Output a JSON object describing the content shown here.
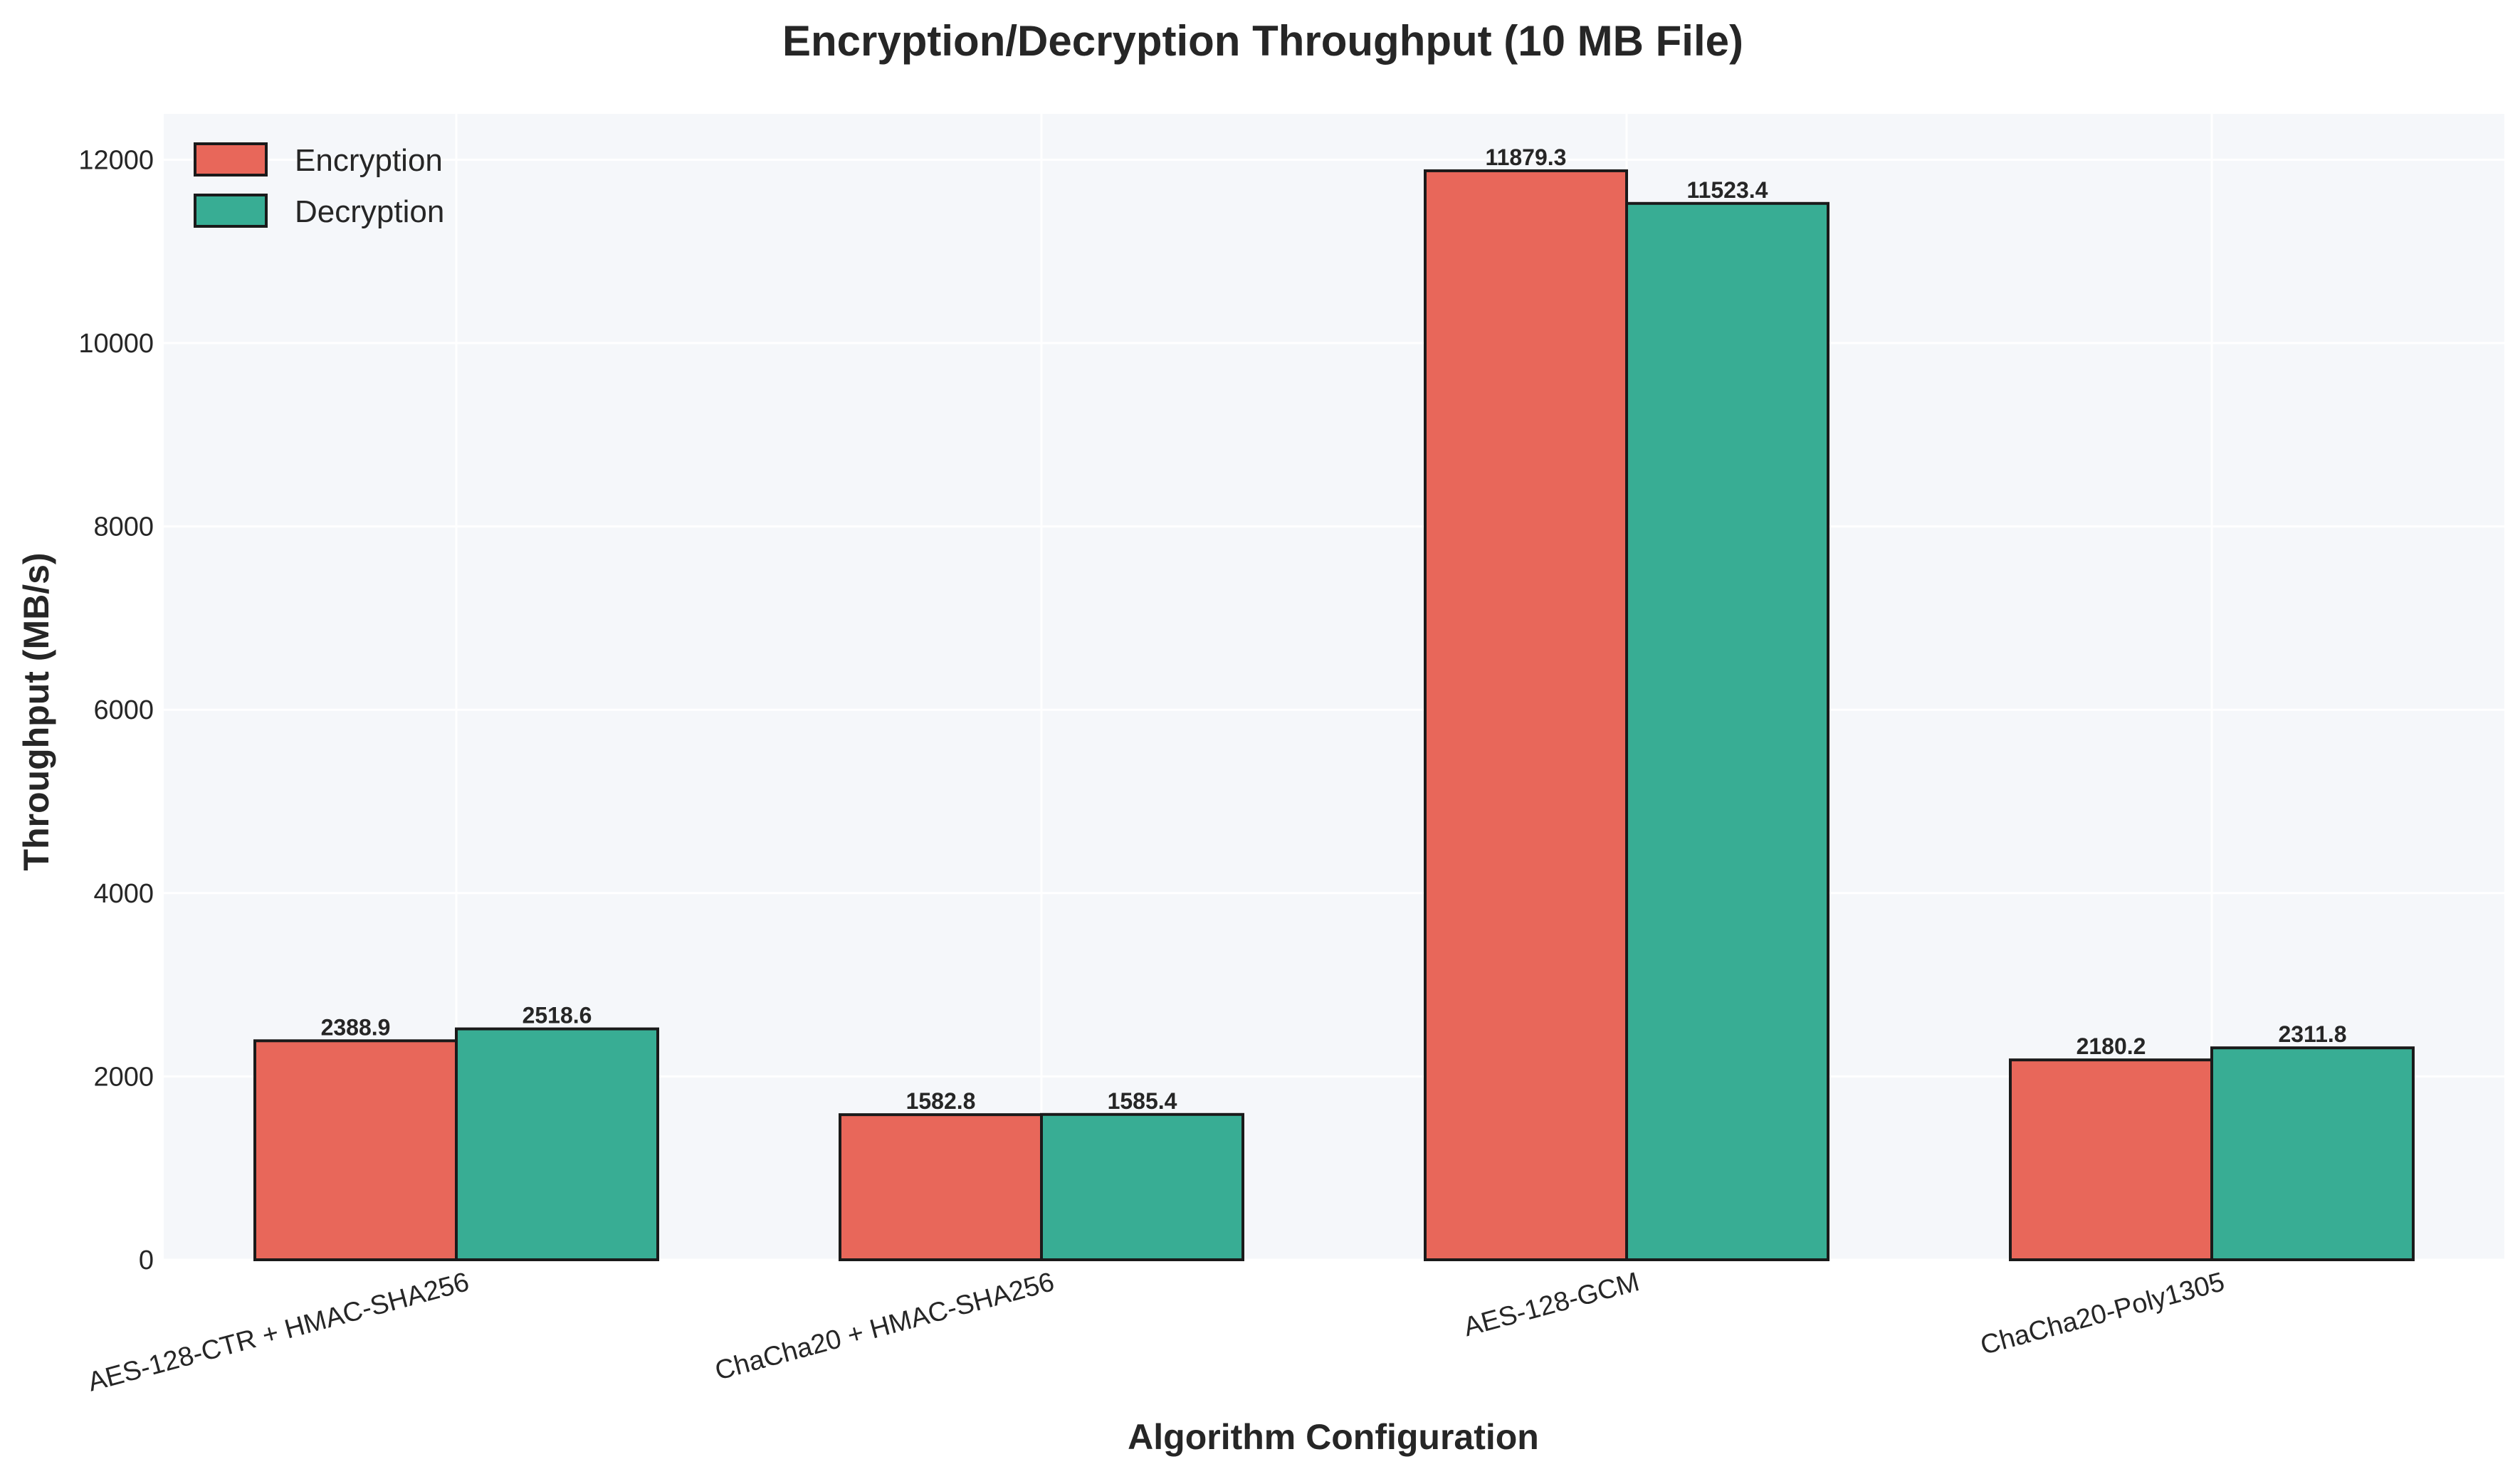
{
  "chart_data": {
    "type": "bar",
    "title": "Encryption/Decryption Throughput (10 MB File)",
    "xlabel": "Algorithm Configuration",
    "ylabel": "Throughput (MB/s)",
    "categories": [
      "AES-128-CTR + HMAC-SHA256",
      "ChaCha20 + HMAC-SHA256",
      "AES-128-GCM",
      "ChaCha20-Poly1305"
    ],
    "series": [
      {
        "name": "Encryption",
        "color": "#e8675a",
        "values": [
          2388.9,
          1582.8,
          11879.3,
          2180.2
        ],
        "labels": [
          "2388.9",
          "1582.8",
          "11879.3",
          "2180.2"
        ]
      },
      {
        "name": "Decryption",
        "color": "#38ad94",
        "values": [
          2518.6,
          1585.4,
          11523.4,
          2311.8
        ],
        "labels": [
          "2518.6",
          "1585.4",
          "11523.4",
          "2311.8"
        ]
      }
    ],
    "ylim": [
      0,
      12500
    ],
    "yticks": [
      0,
      2000,
      4000,
      6000,
      8000,
      10000,
      12000
    ],
    "ytick_labels": [
      "0",
      "2000",
      "4000",
      "6000",
      "8000",
      "10000",
      "12000"
    ],
    "grid": true,
    "legend_position": "top-left",
    "plot_background": "#f5f7fa"
  }
}
